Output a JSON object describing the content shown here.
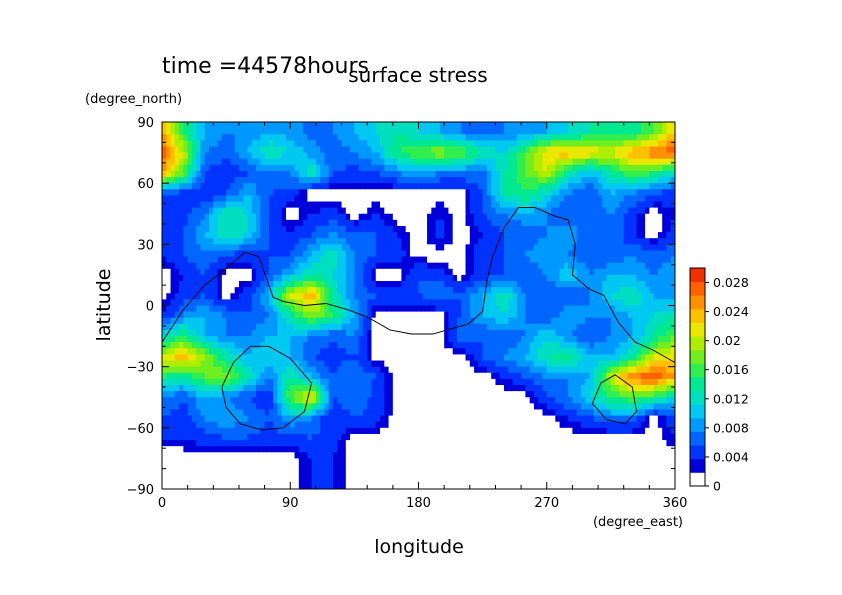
{
  "chart_data": {
    "type": "heatmap",
    "time_label": "time =44578hours",
    "title": "surface stress",
    "xlabel": "longitude",
    "ylabel": "latitude",
    "x_unit": "(degree_east)",
    "y_unit": "(degree_north)",
    "xlim": [
      0,
      360
    ],
    "ylim": [
      -90,
      90
    ],
    "x_ticks": [
      "0",
      "90",
      "180",
      "270",
      "360"
    ],
    "y_ticks": [
      "90",
      "60",
      "30",
      "0",
      "−30",
      "−60",
      "−90"
    ],
    "x_tick_values": [
      0,
      90,
      180,
      270,
      360
    ],
    "y_tick_values": [
      90,
      60,
      30,
      0,
      -30,
      -60,
      -90
    ],
    "colorbar": {
      "ticks": [
        "0.028",
        "0.024",
        "0.02",
        "0.016",
        "0.012",
        "0.008",
        "0.004",
        "0"
      ],
      "tick_values": [
        0.028,
        0.024,
        0.02,
        0.016,
        0.012,
        0.008,
        0.004,
        0
      ],
      "vmin": 0,
      "vmax": 0.03,
      "colors": [
        "#ffffff",
        "#0000d8",
        "#0033ff",
        "#0066ff",
        "#0099ff",
        "#00c8f0",
        "#00e0c0",
        "#00e890",
        "#30ee50",
        "#70ee20",
        "#b0ee00",
        "#e8e800",
        "#ffc000",
        "#ff9000",
        "#ff6000",
        "#f03000"
      ]
    },
    "grid": false,
    "field_lon": [
      0,
      15,
      30,
      45,
      60,
      75,
      90,
      105,
      120,
      135,
      150,
      165,
      180,
      195,
      210,
      225,
      240,
      255,
      270,
      285,
      300,
      315,
      330,
      345,
      360
    ],
    "field_lat": [
      85,
      75,
      65,
      55,
      45,
      35,
      25,
      15,
      5,
      -5,
      -15,
      -25,
      -35,
      -45,
      -55,
      -65,
      -75
    ],
    "field_values": [
      [
        0.024,
        0.014,
        0.008,
        0.006,
        0.006,
        0.008,
        0.007,
        0.005,
        0.006,
        0.008,
        0.01,
        0.012,
        0.01,
        0.008,
        0.006,
        0.005,
        0.006,
        0.006,
        0.008,
        0.01,
        0.012,
        0.014,
        0.012,
        0.016,
        0.022
      ],
      [
        0.028,
        0.02,
        0.006,
        0.005,
        0.008,
        0.012,
        0.01,
        0.007,
        0.005,
        0.006,
        0.008,
        0.014,
        0.016,
        0.018,
        0.016,
        0.012,
        0.01,
        0.016,
        0.022,
        0.024,
        0.022,
        0.02,
        0.024,
        0.026,
        0.028
      ],
      [
        0.024,
        0.016,
        0.004,
        0.002,
        0.004,
        0.006,
        0.006,
        0.012,
        0.004,
        0.003,
        0.004,
        0.006,
        0.008,
        0.006,
        0.006,
        0.005,
        0.012,
        0.016,
        0.02,
        0.012,
        0.008,
        0.012,
        0.016,
        0.014,
        0.01
      ],
      [
        0.004,
        0.003,
        0.002,
        0.004,
        0.008,
        0.004,
        0.003,
        0,
        0,
        0,
        0,
        0,
        0,
        0,
        0,
        0.004,
        0.012,
        0.014,
        0.01,
        0.006,
        0.004,
        0.008,
        0.006,
        0.004,
        0.003
      ],
      [
        0.002,
        0.003,
        0.006,
        0.012,
        0.01,
        0.004,
        0,
        0.002,
        0.003,
        0,
        0.002,
        0,
        0,
        0.002,
        0,
        0.004,
        0.006,
        0.008,
        0.006,
        0.004,
        0.004,
        0.006,
        0.003,
        0,
        0.002
      ],
      [
        0.003,
        0.004,
        0.008,
        0.012,
        0.01,
        0.004,
        0.002,
        0.004,
        0.006,
        0.004,
        0.004,
        0.002,
        0,
        0.003,
        0,
        0.002,
        0.004,
        0.004,
        0.006,
        0.008,
        0.004,
        0.006,
        0.002,
        0,
        0.003
      ],
      [
        0.002,
        0.004,
        0.006,
        0.004,
        0.003,
        0.004,
        0.004,
        0.008,
        0.012,
        0.006,
        0.004,
        0.003,
        0,
        0,
        0,
        0.004,
        0.004,
        0.006,
        0.008,
        0.006,
        0.004,
        0.004,
        0.006,
        0.004,
        0.006
      ],
      [
        0,
        0.002,
        0.004,
        0,
        0,
        0.004,
        0.008,
        0.012,
        0.01,
        0.006,
        0,
        0,
        0.004,
        0.003,
        0,
        0.003,
        0.004,
        0.004,
        0.006,
        0.01,
        0.006,
        0.008,
        0.008,
        0.006,
        0.008
      ],
      [
        0,
        0.003,
        0.004,
        0,
        0.003,
        0.008,
        0.02,
        0.024,
        0.012,
        0.006,
        0.004,
        0.003,
        0.004,
        0.006,
        0.004,
        0.008,
        0.012,
        0.006,
        0.004,
        0.004,
        0.006,
        0.01,
        0.012,
        0.008,
        0.006
      ],
      [
        0.002,
        0.006,
        0.008,
        0.006,
        0.004,
        0.006,
        0.012,
        0.018,
        0.014,
        0.008,
        0,
        0,
        0,
        0,
        0.004,
        0.008,
        0.01,
        0.006,
        0.004,
        0.008,
        0.006,
        0.006,
        0.008,
        0.01,
        0.012
      ],
      [
        0.01,
        0.014,
        0.008,
        0.006,
        0.006,
        0.008,
        0.008,
        0.006,
        0.004,
        0.006,
        0,
        0,
        0,
        0,
        0.006,
        0.004,
        0.004,
        0.006,
        0.01,
        0.006,
        0.004,
        0.006,
        0.008,
        0.012,
        0.016
      ],
      [
        0.02,
        0.024,
        0.018,
        0.012,
        0.008,
        0.01,
        0.008,
        0.004,
        0.003,
        0.004,
        0,
        0,
        0,
        0,
        0,
        0.004,
        0.006,
        0.008,
        0.012,
        0.014,
        0.008,
        0.008,
        0.012,
        0.02,
        0.022
      ],
      [
        0.014,
        0.012,
        0.016,
        0.018,
        0.012,
        0.006,
        0.012,
        0.008,
        0.004,
        0.006,
        0.004,
        0,
        0,
        0,
        0,
        0,
        0.002,
        0.004,
        0.006,
        0.006,
        0.008,
        0.02,
        0.026,
        0.028,
        0.024
      ],
      [
        0.006,
        0.004,
        0.008,
        0.006,
        0.004,
        0.002,
        0.016,
        0.022,
        0.004,
        0.006,
        0.003,
        0,
        0,
        0,
        0,
        0,
        0,
        0,
        0.004,
        0.006,
        0.01,
        0.014,
        0.016,
        0.014,
        0.01
      ],
      [
        0.004,
        0.003,
        0.006,
        0.008,
        0.006,
        0.004,
        0.008,
        0.006,
        0.002,
        0.004,
        0.003,
        0,
        0,
        0,
        0,
        0,
        0,
        0,
        0,
        0.002,
        0.004,
        0.006,
        0.006,
        0,
        0.004
      ],
      [
        0.002,
        0.002,
        0.003,
        0.004,
        0.004,
        0.003,
        0.003,
        0.004,
        0.003,
        0,
        0,
        0,
        0,
        0,
        0,
        0,
        0,
        0,
        0,
        0,
        0,
        0,
        0,
        0,
        0.002
      ],
      [
        0,
        0,
        0,
        0,
        0,
        0,
        0,
        0.002,
        0.002,
        0,
        0,
        0,
        0,
        0,
        0,
        0,
        0,
        0,
        0,
        0,
        0,
        0,
        0,
        0,
        0
      ]
    ],
    "coastline": [
      [
        [
          0,
          -18
        ],
        [
          15,
          -2
        ],
        [
          30,
          10
        ],
        [
          45,
          18
        ],
        [
          58,
          26
        ],
        [
          68,
          24
        ],
        [
          75,
          10
        ],
        [
          78,
          4
        ],
        [
          85,
          2
        ],
        [
          100,
          0
        ],
        [
          115,
          1
        ],
        [
          130,
          -2
        ],
        [
          145,
          -6
        ],
        [
          160,
          -12
        ],
        [
          175,
          -14
        ],
        [
          190,
          -14
        ],
        [
          205,
          -11
        ],
        [
          215,
          -9
        ],
        [
          225,
          -3
        ],
        [
          228,
          12
        ],
        [
          232,
          24
        ],
        [
          240,
          38
        ],
        [
          250,
          48
        ],
        [
          262,
          48
        ],
        [
          275,
          44
        ],
        [
          285,
          42
        ],
        [
          290,
          30
        ],
        [
          288,
          15
        ],
        [
          300,
          8
        ],
        [
          310,
          5
        ],
        [
          320,
          -8
        ],
        [
          332,
          -18
        ],
        [
          345,
          -22
        ],
        [
          355,
          -26
        ],
        [
          360,
          -28
        ]
      ],
      [
        [
          42,
          -40
        ],
        [
          50,
          -28
        ],
        [
          62,
          -20
        ],
        [
          75,
          -20
        ],
        [
          90,
          -26
        ],
        [
          105,
          -38
        ],
        [
          100,
          -52
        ],
        [
          85,
          -60
        ],
        [
          70,
          -61
        ],
        [
          55,
          -58
        ],
        [
          45,
          -50
        ],
        [
          42,
          -40
        ]
      ],
      [
        [
          302,
          -48
        ],
        [
          308,
          -38
        ],
        [
          318,
          -34
        ],
        [
          330,
          -40
        ],
        [
          333,
          -52
        ],
        [
          325,
          -58
        ],
        [
          312,
          -56
        ],
        [
          302,
          -48
        ]
      ]
    ]
  }
}
